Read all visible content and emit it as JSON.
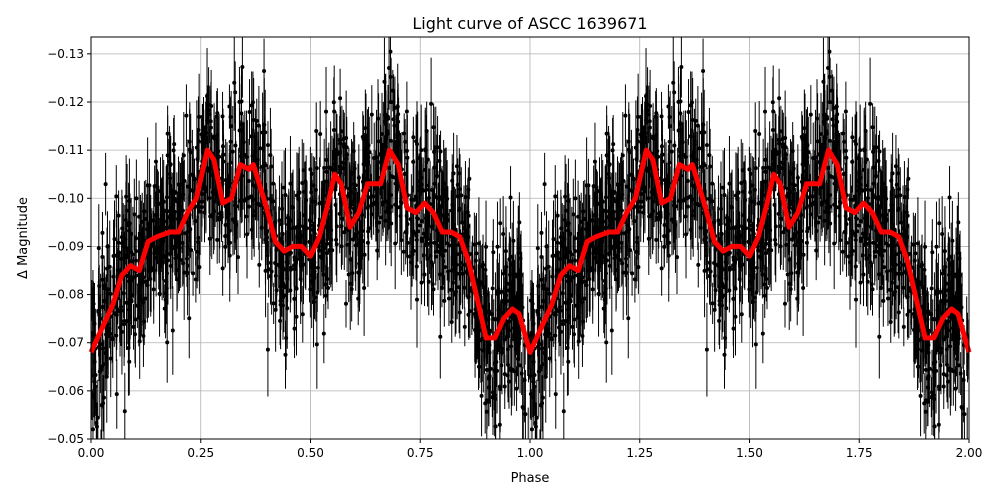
{
  "chart_data": {
    "type": "scatter",
    "title": "Light curve of ASCC 1639671",
    "xlabel": "Phase",
    "ylabel": "Δ Magnitude",
    "xlim": [
      0.0,
      2.0
    ],
    "ylim": [
      -0.05,
      -0.1335
    ],
    "y_inverted": true,
    "grid": true,
    "x_ticks": [
      "0.00",
      "0.25",
      "0.50",
      "0.75",
      "1.00",
      "1.25",
      "1.50",
      "1.75",
      "2.00"
    ],
    "y_ticks": [
      "−0.13",
      "−0.12",
      "−0.11",
      "−0.10",
      "−0.09",
      "−0.08",
      "−0.07",
      "−0.06",
      "−0.05"
    ],
    "x_tick_values": [
      0,
      0.25,
      0.5,
      0.75,
      1.0,
      1.25,
      1.5,
      1.75,
      2.0
    ],
    "y_tick_values": [
      -0.13,
      -0.12,
      -0.11,
      -0.1,
      -0.09,
      -0.08,
      -0.07,
      -0.06,
      -0.05
    ],
    "series": [
      {
        "kind": "observations with error bars",
        "color": "#000000",
        "description_note": ""
      },
      {
        "kind": "smoothed curve (one cycle, repeated over phase 0–2)",
        "color": "#ff0000",
        "phase": [
          0.0,
          0.02,
          0.05,
          0.07,
          0.09,
          0.11,
          0.13,
          0.15,
          0.18,
          0.2,
          0.22,
          0.24,
          0.265,
          0.28,
          0.3,
          0.32,
          0.34,
          0.36,
          0.37,
          0.4,
          0.42,
          0.44,
          0.46,
          0.48,
          0.5,
          0.52,
          0.54,
          0.555,
          0.57,
          0.59,
          0.61,
          0.63,
          0.66,
          0.68,
          0.7,
          0.72,
          0.74,
          0.76,
          0.78,
          0.8,
          0.82,
          0.84,
          0.86,
          0.88,
          0.9,
          0.92,
          0.94,
          0.96,
          0.975,
          1.0
        ],
        "magnitude": [
          -0.068,
          -0.072,
          -0.078,
          -0.084,
          -0.086,
          -0.085,
          -0.091,
          -0.092,
          -0.093,
          -0.093,
          -0.097,
          -0.1,
          -0.11,
          -0.108,
          -0.099,
          -0.1,
          -0.107,
          -0.106,
          -0.107,
          -0.098,
          -0.091,
          -0.089,
          -0.09,
          -0.09,
          -0.088,
          -0.092,
          -0.099,
          -0.105,
          -0.103,
          -0.094,
          -0.097,
          -0.103,
          -0.103,
          -0.11,
          -0.107,
          -0.098,
          -0.097,
          -0.099,
          -0.097,
          -0.093,
          -0.093,
          -0.092,
          -0.087,
          -0.079,
          -0.071,
          -0.071,
          -0.075,
          -0.077,
          -0.076,
          -0.068
        ]
      }
    ]
  }
}
